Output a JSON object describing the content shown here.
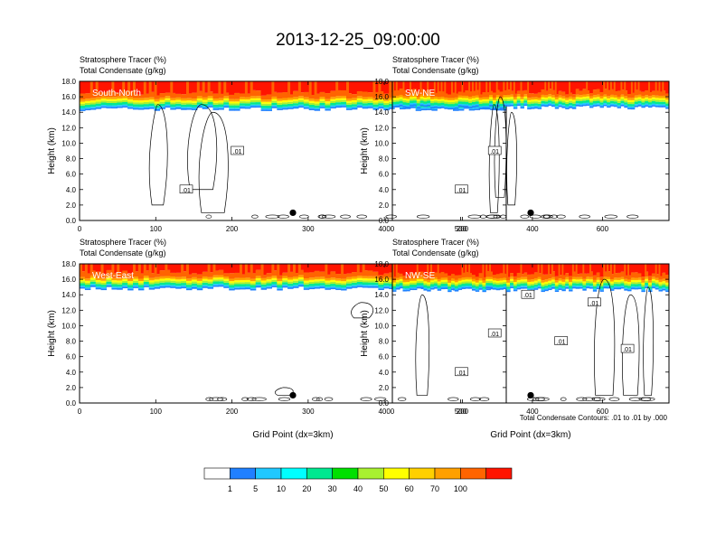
{
  "title": "2013-12-25_09:00:00",
  "colorbar": {
    "labels": [
      "1",
      "5",
      "10",
      "20",
      "30",
      "40",
      "50",
      "60",
      "70",
      "100"
    ],
    "colors": [
      "#ffffff",
      "#2080ff",
      "#20c8ff",
      "#00ffff",
      "#00e890",
      "#00e000",
      "#a8f030",
      "#ffff00",
      "#ffd000",
      "#ffa000",
      "#ff6400",
      "#ff1400"
    ]
  },
  "footnote": "Total Condensate Contours: .01 to .01 by .000",
  "chart_data": [
    {
      "type": "area",
      "panel_label": "South-North",
      "subtitle_line1": "Stratosphere Tracer   (%)",
      "subtitle_line2": "Total Condensate   (g/kg)",
      "ylabel": "Height (km)",
      "xlabel": "",
      "xlim": [
        0,
        560
      ],
      "ylim": [
        0,
        18
      ],
      "xticks": [
        "0",
        "100",
        "200",
        "300",
        "400",
        "500"
      ],
      "yticks": [
        "0.0",
        "2.0",
        "4.0",
        "6.0",
        "8.0",
        "10.0",
        "12.0",
        "14.0",
        "16.0",
        "18.0"
      ],
      "contour_labels": [
        ".01",
        ".01"
      ],
      "tracer_base_km": 14.8,
      "marker": {
        "x": 280,
        "y": 1.0
      }
    },
    {
      "type": "area",
      "panel_label": "SW-NE",
      "subtitle_line1": "Stratosphere Tracer   (%)",
      "subtitle_line2": "Total Condensate   (g/kg)",
      "ylabel": "Height (km)",
      "xlabel": "",
      "xlim": [
        0,
        790
      ],
      "ylim": [
        0,
        18
      ],
      "xticks": [
        "0",
        "200",
        "400",
        "600"
      ],
      "yticks": [
        "0.0",
        "2.0",
        "4.0",
        "6.0",
        "8.0",
        "10.0",
        "12.0",
        "14.0",
        "16.0",
        "18.0"
      ],
      "contour_labels": [
        ".01",
        ".01"
      ],
      "tracer_base_km": 15.0,
      "marker": {
        "x": 395,
        "y": 1.0
      }
    },
    {
      "type": "area",
      "panel_label": "West-East",
      "subtitle_line1": "Stratosphere Tracer   (%)",
      "subtitle_line2": "Total Condensate   (g/kg)",
      "ylabel": "Height (km)",
      "xlabel": "Grid Point (dx=3km)",
      "xlim": [
        0,
        560
      ],
      "ylim": [
        0,
        18
      ],
      "xticks": [
        "0",
        "100",
        "200",
        "300",
        "400",
        "500"
      ],
      "yticks": [
        "0.0",
        "2.0",
        "4.0",
        "6.0",
        "8.0",
        "10.0",
        "12.0",
        "14.0",
        "16.0",
        "18.0"
      ],
      "contour_labels": [],
      "tracer_base_km": 15.2,
      "marker": {
        "x": 280,
        "y": 1.0
      }
    },
    {
      "type": "area",
      "panel_label": "NW-SE",
      "subtitle_line1": "Stratosphere Tracer   (%)",
      "subtitle_line2": "Total Condensate   (g/kg)",
      "ylabel": "Height (km)",
      "xlabel": "Grid Point (dx=3km)",
      "xlim": [
        0,
        790
      ],
      "ylim": [
        0,
        18
      ],
      "xticks": [
        "0",
        "200",
        "400",
        "600"
      ],
      "yticks": [
        "0.0",
        "2.0",
        "4.0",
        "6.0",
        "8.0",
        "10.0",
        "12.0",
        "14.0",
        "16.0",
        "18.0"
      ],
      "contour_labels": [
        ".01",
        ".01",
        ".01",
        ".01",
        ".01",
        ".01"
      ],
      "tracer_base_km": 15.0,
      "marker": {
        "x": 395,
        "y": 1.0
      }
    }
  ]
}
